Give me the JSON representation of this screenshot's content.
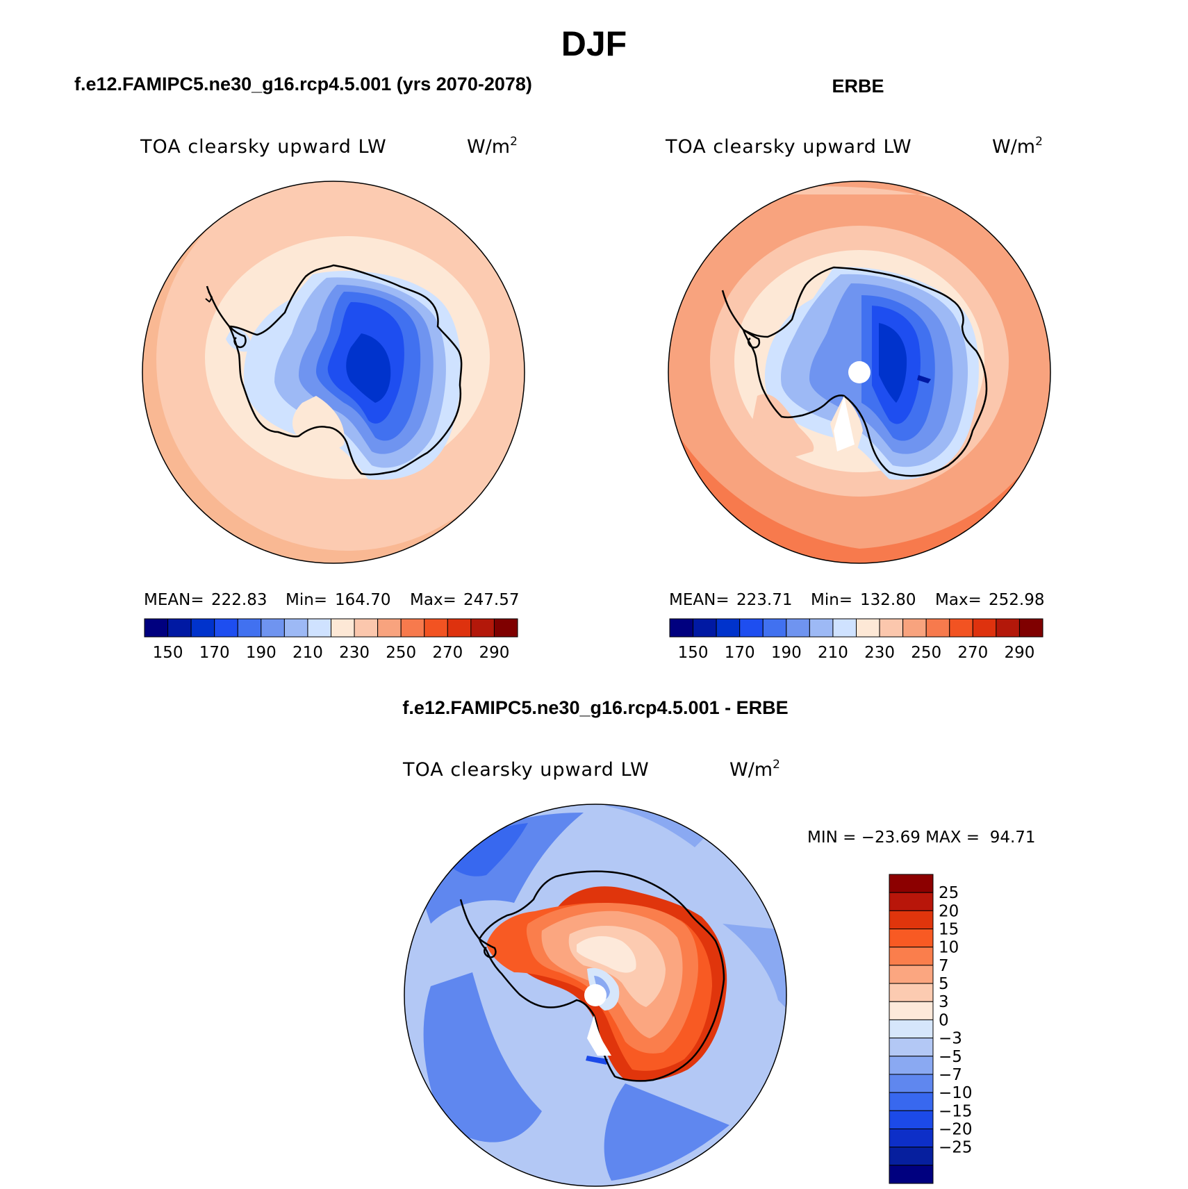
{
  "figure": {
    "season": "DJF",
    "model_title": "f.e12.FAMIPC5.ne30_g16.rcp4.5.001 (yrs 2070-2078)",
    "obs_title": "ERBE",
    "diff_title": "f.e12.FAMIPC5.ne30_g16.rcp4.5.001 - ERBE"
  },
  "panels": [
    {
      "id": "model",
      "variable": "TOA clearsky upward LW",
      "units_base": "W/m",
      "units_exp": "2",
      "stats": {
        "mean_label": "MEAN=",
        "mean": "222.83",
        "min_label": "Min=",
        "min": "164.70",
        "max_label": "Max=",
        "max": "247.57"
      }
    },
    {
      "id": "obs",
      "variable": "TOA clearsky upward LW",
      "units_base": "W/m",
      "units_exp": "2",
      "stats": {
        "mean_label": "MEAN=",
        "mean": "223.71",
        "min_label": "Min=",
        "min": "132.80",
        "max_label": "Max=",
        "max": "252.98"
      }
    },
    {
      "id": "diff",
      "variable": "TOA clearsky upward LW",
      "units_base": "W/m",
      "units_exp": "2",
      "minmax": "MIN = −23.69 MAX =  94.71"
    }
  ],
  "abs_colorbar": {
    "colors": [
      "#00007f",
      "#0019a3",
      "#0033cc",
      "#1e4ef0",
      "#4171f0",
      "#6f94f0",
      "#9db9f5",
      "#cfe2ff",
      "#fde8d6",
      "#fbc7ad",
      "#f8a37e",
      "#f77a4d",
      "#f25322",
      "#de320e",
      "#b3180a",
      "#7f0000"
    ],
    "labels": [
      "150",
      "170",
      "190",
      "210",
      "230",
      "250",
      "270",
      "290"
    ]
  },
  "diff_colorbar": {
    "colors_top_to_bottom": [
      "#8c0000",
      "#b8160a",
      "#e0350c",
      "#f85a23",
      "#fa7e4c",
      "#fba680",
      "#fccbb1",
      "#fde9da",
      "#d6e6fb",
      "#b3c8f5",
      "#8aa9f2",
      "#5f87ef",
      "#3868ef",
      "#1c4ae8",
      "#0d2fc8",
      "#061f9e",
      "#00007f"
    ],
    "labels_top_to_bottom": [
      "25",
      "20",
      "15",
      "10",
      "7",
      "5",
      "3",
      "0",
      "−3",
      "−5",
      "−7",
      "−10",
      "−15",
      "−20",
      "−25"
    ]
  }
}
